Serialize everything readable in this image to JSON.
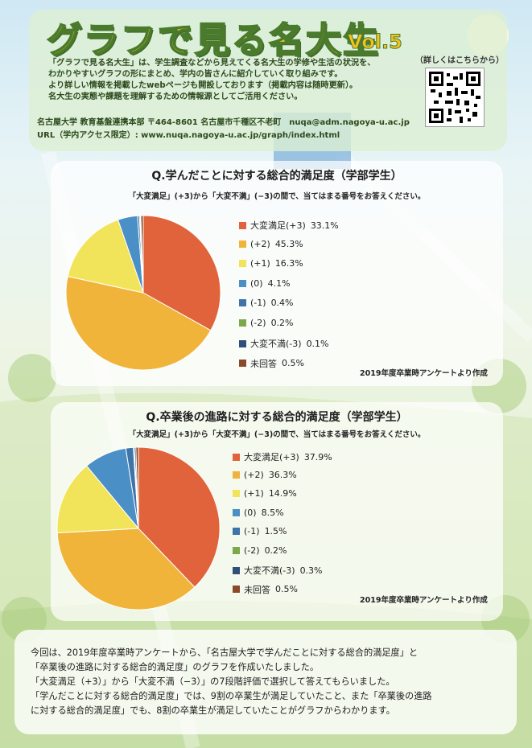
{
  "header": {
    "title": "グラフで見る名大生",
    "vol": "Vol.5",
    "intro_lines": [
      "「グラフで見る名大生」は、学生調査などから見えてくる名大生の学修や生活の状況を、",
      "わかりやすいグラフの形にまとめ、学内の皆さんに紹介していく取り組みです。",
      "より詳しい情報を掲載したwebページも開設しております（掲載内容は随時更新）。",
      "名大生の実態や課題を理解するための情報源としてご活用ください。"
    ],
    "detail_note": "（詳しくはこちらから）",
    "org_line": "名古屋大学 教育基盤連携本部 〒464-8601 名古屋市千種区不老町　nuqa@adm.nagoya-u.ac.jp",
    "url_line": "URL（学内アクセス限定）: www.nuqa.nagoya-u.ac.jp/graph/index.html"
  },
  "colors": {
    "very_satisfied": "#e0633b",
    "plus2": "#f0b43a",
    "plus1": "#f2e45a",
    "zero": "#4b8fc7",
    "minus1": "#3f74aa",
    "minus2": "#7aa84a",
    "very_dissatisfied": "#2f4f7a",
    "no_answer": "#8a4a2a"
  },
  "chart_data": [
    {
      "type": "pie",
      "title": "Q.学んだことに対する総合的満足度（学部学生）",
      "subtitle": "「大変満足」(+3)から「大変不満」(−3)の間で、当てはまる番号をお答えください。",
      "labels": [
        "大変満足(+3)",
        "(+2)",
        "(+1)",
        "(0)",
        "(-1)",
        "(-2)",
        "大変不満(-3)",
        "未回答"
      ],
      "values": [
        33.1,
        45.3,
        16.3,
        4.1,
        0.4,
        0.2,
        0.1,
        0.5
      ],
      "value_labels": [
        "33.1%",
        "45.3%",
        "16.3%",
        "4.1%",
        "0.4%",
        "0.2%",
        "0.1%",
        "0.5%"
      ],
      "legend": "right",
      "source": "2019年度卒業時アンケートより作成"
    },
    {
      "type": "pie",
      "title": "Q.卒業後の進路に対する総合的満足度（学部学生）",
      "subtitle": "「大変満足」(+3)から「大変不満」(−3)の間で、当てはまる番号をお答えください。",
      "labels": [
        "大変満足(+3)",
        "(+2)",
        "(+1)",
        "(0)",
        "(-1)",
        "(-2)",
        "大変不満(-3)",
        "未回答"
      ],
      "values": [
        37.9,
        36.3,
        14.9,
        8.5,
        1.5,
        0.2,
        0.3,
        0.5
      ],
      "value_labels": [
        "37.9%",
        "36.3%",
        "14.9%",
        "8.5%",
        "1.5%",
        "0.2%",
        "0.3%",
        "0.5%"
      ],
      "legend": "right",
      "source": "2019年度卒業時アンケートより作成"
    }
  ],
  "summary": {
    "lines": [
      "今回は、2019年度卒業時アンケートから、「名古屋大学で学んだことに対する総合的満足度」と",
      "「卒業後の進路に対する総合的満足度」のグラフを作成いたしました。",
      "「大変満足（+3）」から「大変不満（−3）」の7段階評価で選択して答えてもらいました。",
      "「学んだことに対する総合的満足度」では、9割の卒業生が満足していたこと、また「卒業後の進路",
      "に対する総合的満足度」でも、8割の卒業生が満足していたことがグラフからわかります。"
    ]
  }
}
